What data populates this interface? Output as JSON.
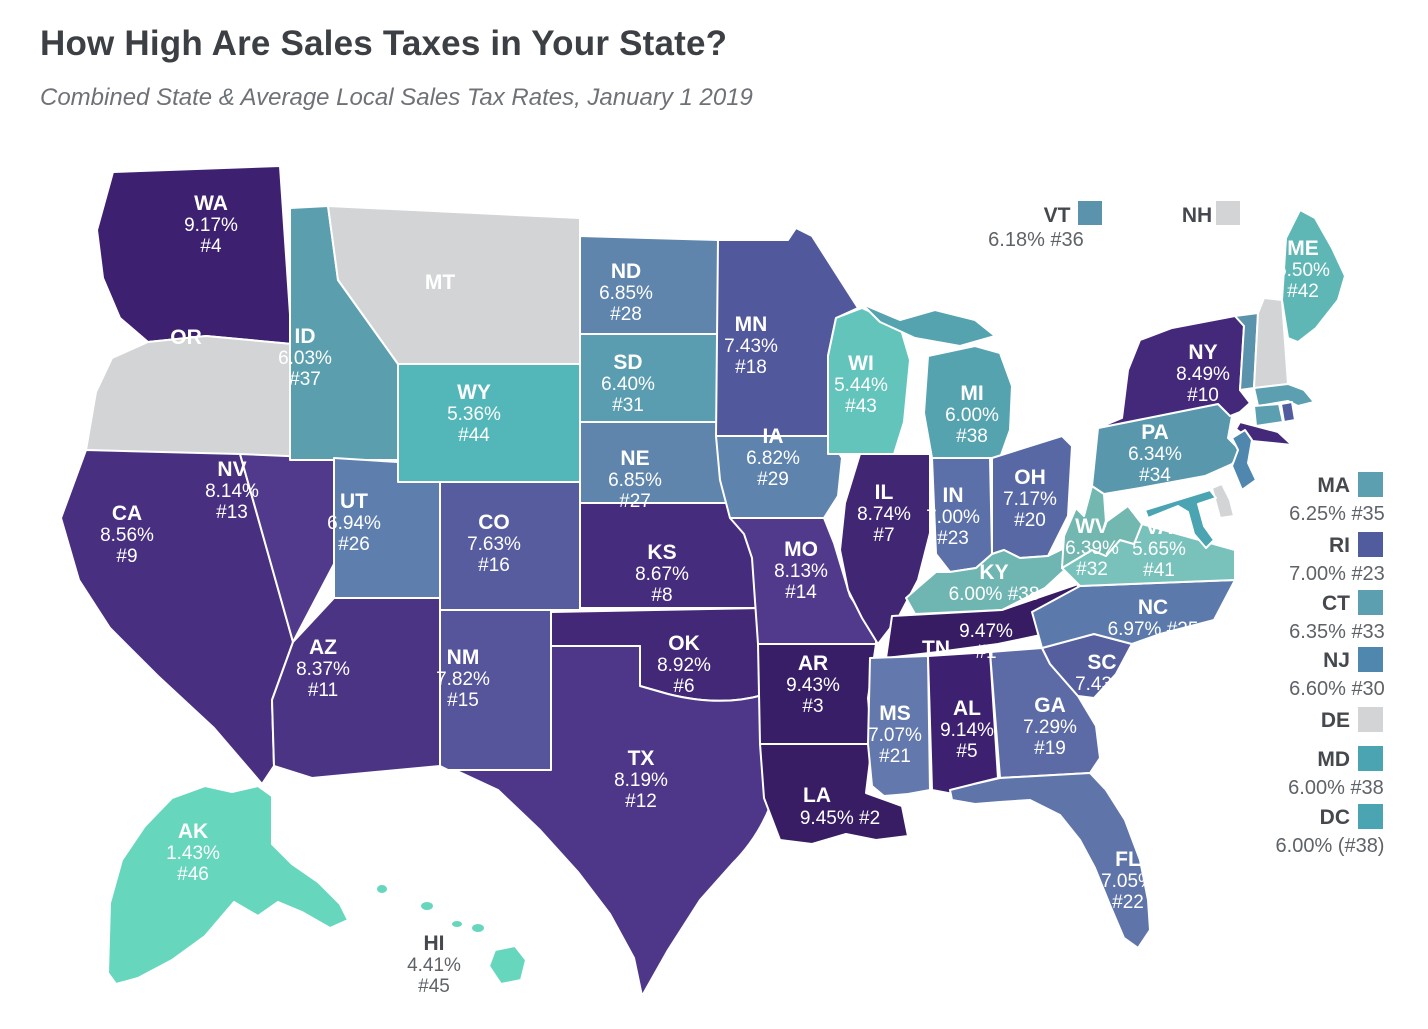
{
  "header": {
    "title": "How High Are Sales Taxes in Your State?",
    "subtitle": "Combined State & Average Local Sales Tax Rates, January 1 2019"
  },
  "colors": {
    "background": "#ffffff",
    "state_border": "#ffffff",
    "no_tax_gray": "#d3d4d6",
    "darkest_purple_high_rate": "#371c63",
    "lightest_teal_low_rate": "#66d7bd",
    "title_text": "#3c4044",
    "subtitle_text": "#6e7277",
    "legend_text": "#45494e",
    "legend_value_text": "#5e6368",
    "map_label_text": "#ffffff"
  },
  "states": [
    {
      "abbr": "WA",
      "rate": "9.17%",
      "rank": "#4",
      "color": "#3d2170"
    },
    {
      "abbr": "OR",
      "rate": "",
      "rank": "",
      "color": "#d3d4d6"
    },
    {
      "abbr": "MT",
      "rate": "",
      "rank": "",
      "color": "#d3d4d6"
    },
    {
      "abbr": "ID",
      "rate": "6.03%",
      "rank": "#37",
      "color": "#5b9fae"
    },
    {
      "abbr": "WY",
      "rate": "5.36%",
      "rank": "#44",
      "color": "#53b6b8"
    },
    {
      "abbr": "NV",
      "rate": "8.14%",
      "rank": "#13",
      "color": "#513a8c"
    },
    {
      "abbr": "CA",
      "rate": "8.56%",
      "rank": "#9",
      "color": "#482f80"
    },
    {
      "abbr": "UT",
      "rate": "6.94%",
      "rank": "#26",
      "color": "#5e7fae"
    },
    {
      "abbr": "CO",
      "rate": "7.63%",
      "rank": "#16",
      "color": "#565c9e"
    },
    {
      "abbr": "AZ",
      "rate": "8.37%",
      "rank": "#11",
      "color": "#4c3485"
    },
    {
      "abbr": "NM",
      "rate": "7.82%",
      "rank": "#15",
      "color": "#56549a"
    },
    {
      "abbr": "ND",
      "rate": "6.85%",
      "rank": "#28",
      "color": "#5f85ad"
    },
    {
      "abbr": "SD",
      "rate": "6.40%",
      "rank": "#31",
      "color": "#5b9db0"
    },
    {
      "abbr": "NE",
      "rate": "6.85%",
      "rank": "#27",
      "color": "#5f85ad"
    },
    {
      "abbr": "KS",
      "rate": "8.67%",
      "rank": "#8",
      "color": "#452c7c"
    },
    {
      "abbr": "OK",
      "rate": "8.92%",
      "rank": "#6",
      "color": "#422877"
    },
    {
      "abbr": "TX",
      "rate": "8.19%",
      "rank": "#12",
      "color": "#4e3788"
    },
    {
      "abbr": "MN",
      "rate": "7.43%",
      "rank": "#18",
      "color": "#51589b"
    },
    {
      "abbr": "IA",
      "rate": "6.82%",
      "rank": "#29",
      "color": "#5e83ad"
    },
    {
      "abbr": "MO",
      "rate": "8.13%",
      "rank": "#14",
      "color": "#513a8c"
    },
    {
      "abbr": "AR",
      "rate": "9.43%",
      "rank": "#3",
      "color": "#381e66"
    },
    {
      "abbr": "LA",
      "rate": "9.45%",
      "rank": "#2",
      "color": "#381d64"
    },
    {
      "abbr": "WI",
      "rate": "5.44%",
      "rank": "#43",
      "color": "#63c4bc"
    },
    {
      "abbr": "IL",
      "rate": "8.74%",
      "rank": "#7",
      "color": "#402673"
    },
    {
      "abbr": "MI",
      "rate": "6.00%",
      "rank": "#38",
      "color": "#56a3b0"
    },
    {
      "abbr": "IN",
      "rate": "7.00%",
      "rank": "#23",
      "color": "#5b70a8"
    },
    {
      "abbr": "OH",
      "rate": "7.17%",
      "rank": "#20",
      "color": "#5868a4"
    },
    {
      "abbr": "KY",
      "rate": "6.00%",
      "rank": "#38",
      "color": "#6fb5b1"
    },
    {
      "abbr": "TN",
      "rate": "9.47%",
      "rank": "#1",
      "color": "#371c63"
    },
    {
      "abbr": "MS",
      "rate": "7.07%",
      "rank": "#21",
      "color": "#6378ac"
    },
    {
      "abbr": "AL",
      "rate": "9.14%",
      "rank": "#5",
      "color": "#3d2170"
    },
    {
      "abbr": "GA",
      "rate": "7.29%",
      "rank": "#19",
      "color": "#5c6ba6"
    },
    {
      "abbr": "FL",
      "rate": "7.05%",
      "rank": "#22",
      "color": "#5f74a9"
    },
    {
      "abbr": "SC",
      "rate": "7.43%",
      "rank": "#17",
      "color": "#555f9e"
    },
    {
      "abbr": "NC",
      "rate": "6.97%",
      "rank": "#25",
      "color": "#5b79ab"
    },
    {
      "abbr": "VA",
      "rate": "5.65%",
      "rank": "#41",
      "color": "#79c2bc"
    },
    {
      "abbr": "WV",
      "rate": "6.39%",
      "rank": "#32",
      "color": "#73b7b1"
    },
    {
      "abbr": "PA",
      "rate": "6.34%",
      "rank": "#34",
      "color": "#5897ac"
    },
    {
      "abbr": "NY",
      "rate": "8.49%",
      "rank": "#10",
      "color": "#44297b"
    },
    {
      "abbr": "VT",
      "rate": "6.18%",
      "rank": "#36",
      "color": "#5b93ad"
    },
    {
      "abbr": "NH",
      "rate": "",
      "rank": "",
      "color": "#d3d4d6"
    },
    {
      "abbr": "ME",
      "rate": "5.50%",
      "rank": "#42",
      "color": "#5fb7b5"
    },
    {
      "abbr": "MA",
      "rate": "6.25%",
      "rank": "#35",
      "color": "#5b9fb0"
    },
    {
      "abbr": "RI",
      "rate": "7.00%",
      "rank": "#23",
      "color": "#515c9e"
    },
    {
      "abbr": "CT",
      "rate": "6.35%",
      "rank": "#33",
      "color": "#5b9fb0"
    },
    {
      "abbr": "NJ",
      "rate": "6.60%",
      "rank": "#30",
      "color": "#4f87ae"
    },
    {
      "abbr": "DE",
      "rate": "",
      "rank": "",
      "color": "#d3d4d6"
    },
    {
      "abbr": "MD",
      "rate": "6.00%",
      "rank": "#38",
      "color": "#4aa4b2"
    },
    {
      "abbr": "DC",
      "rate": "6.00%",
      "rank": "(#38)",
      "color": "#4aa4b2"
    },
    {
      "abbr": "AK",
      "rate": "1.43%",
      "rank": "#46",
      "color": "#66d7bd"
    },
    {
      "abbr": "HI",
      "rate": "4.41%",
      "rank": "#45",
      "color": "#66d6bd"
    }
  ]
}
